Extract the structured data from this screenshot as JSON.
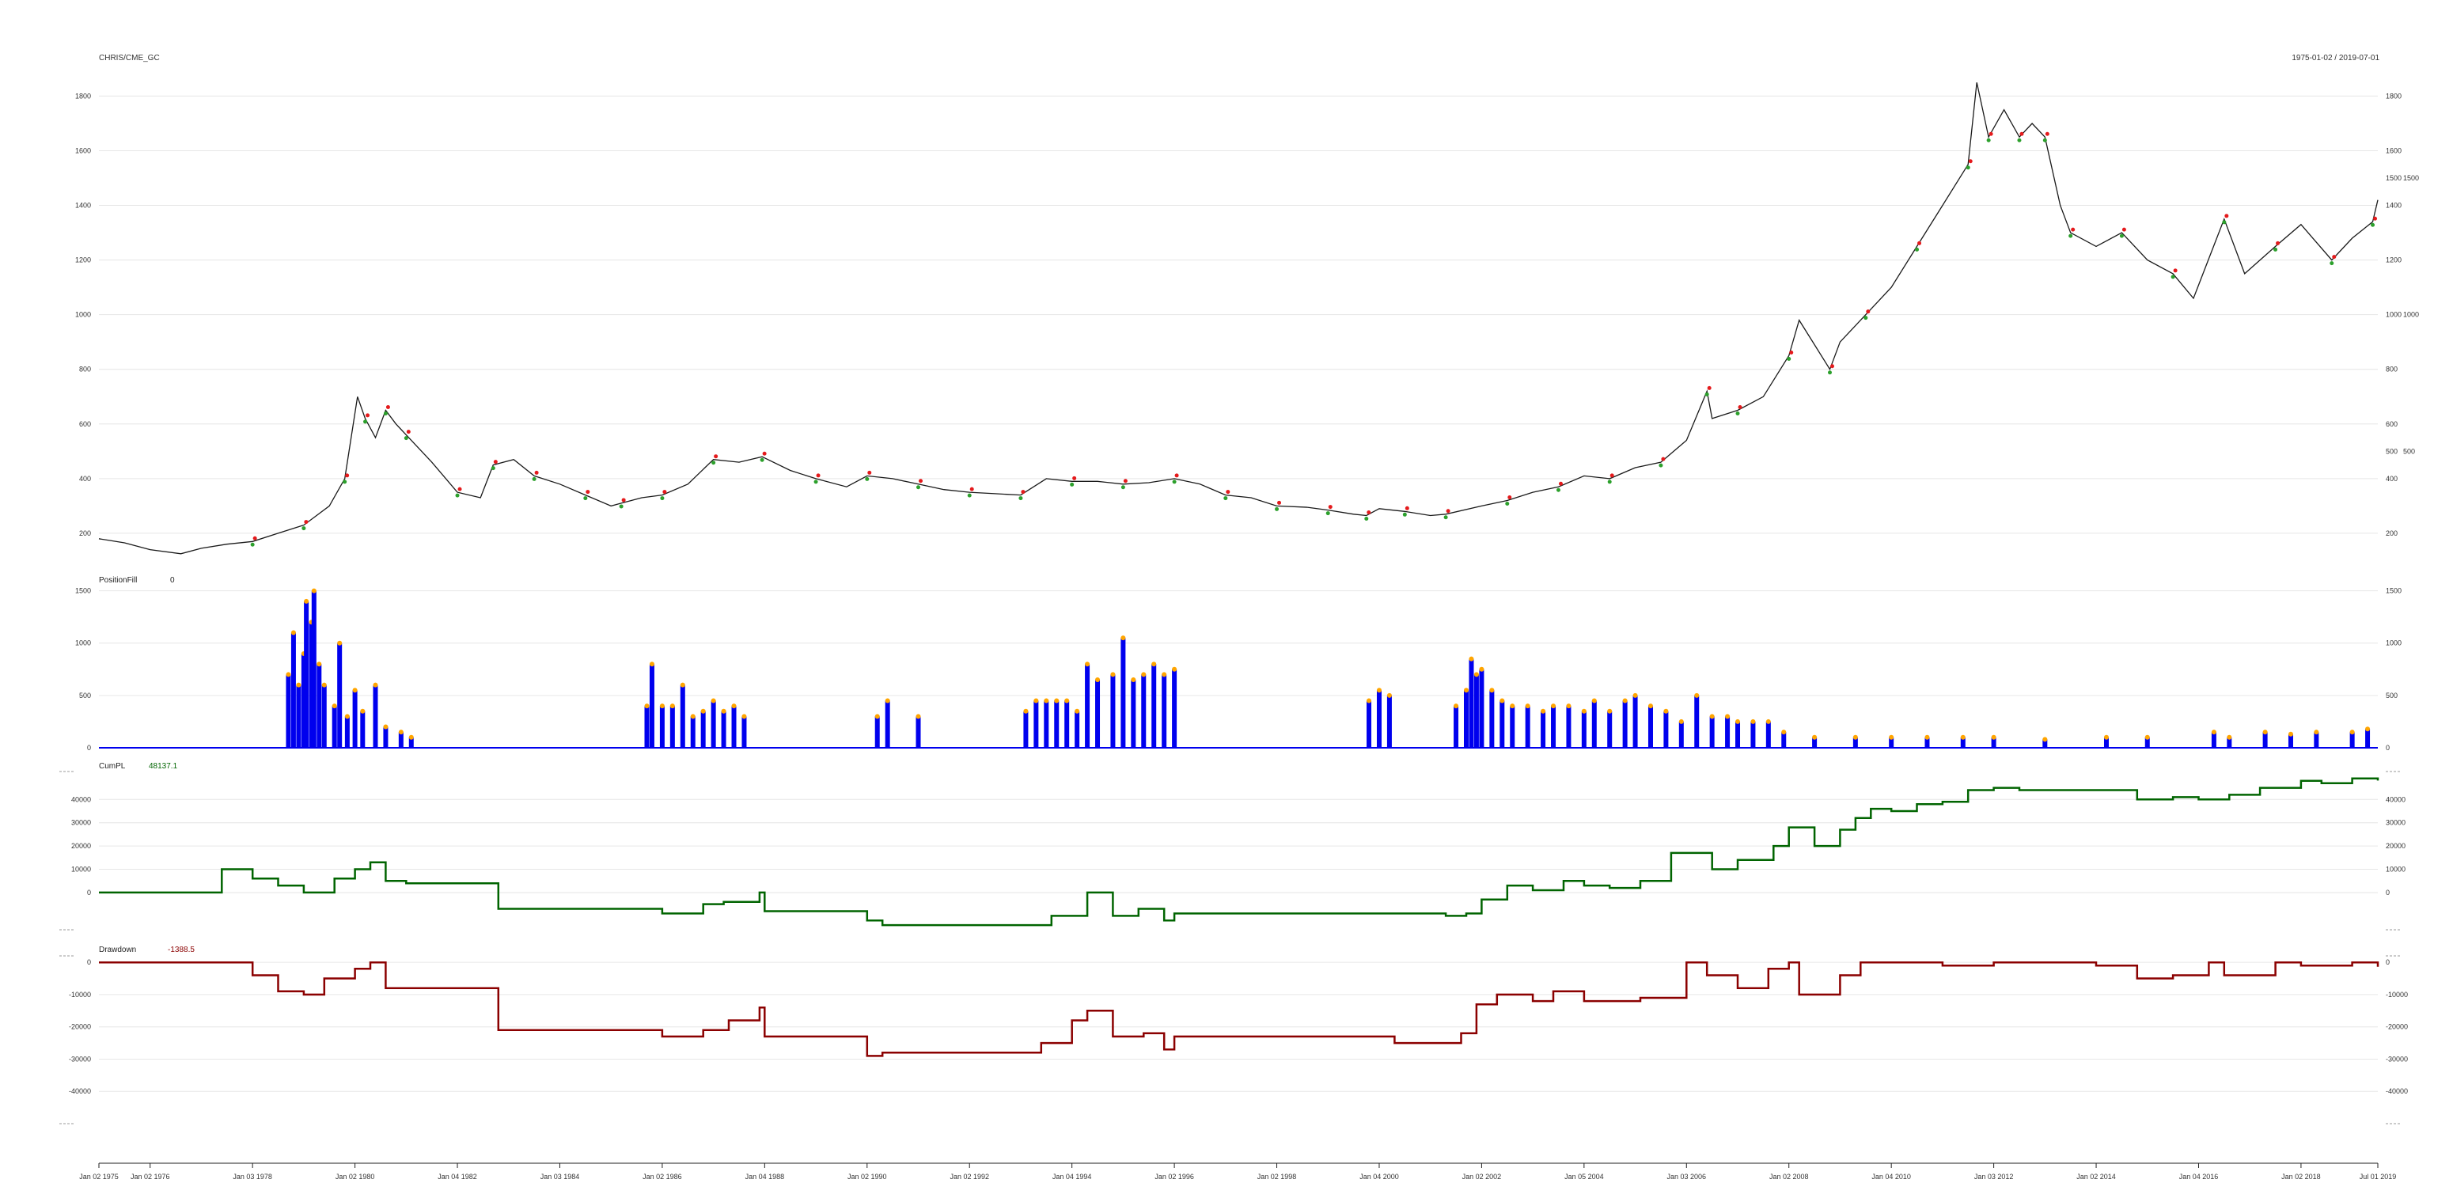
{
  "header": {
    "symbol": "CHRIS/CME_GC",
    "date_range": "1975-01-02 / 2019-07-01"
  },
  "x_axis": {
    "ticks": [
      "Jan 02 1975",
      "Jan 02 1976",
      "Jan 03 1978",
      "Jan 02 1980",
      "Jan 04 1982",
      "Jan 03 1984",
      "Jan 02 1986",
      "Jan 04 1988",
      "Jan 02 1990",
      "Jan 02 1992",
      "Jan 04 1994",
      "Jan 02 1996",
      "Jan 02 1998",
      "Jan 04 2000",
      "Jan 02 2002",
      "Jan 05 2004",
      "Jan 03 2006",
      "Jan 02 2008",
      "Jan 04 2010",
      "Jan 03 2012",
      "Jan 02 2014",
      "Jan 04 2016",
      "Jan 02 2018",
      "Jul 01 2019"
    ],
    "tick_years": [
      1975.0,
      1976.0,
      1978.0,
      1980.0,
      1982.0,
      1984.0,
      1986.0,
      1988.0,
      1990.0,
      1992.0,
      1994.0,
      1996.0,
      1998.0,
      2000.0,
      2002.0,
      2004.0,
      2006.0,
      2008.0,
      2010.0,
      2012.0,
      2014.0,
      2016.0,
      2018.0,
      2019.5
    ]
  },
  "panels": {
    "price": {
      "label": "",
      "left_ticks": [
        "200",
        "400",
        "600",
        "800",
        "1000",
        "1200",
        "1400",
        "1600",
        "1800"
      ],
      "right_ticks": [
        "200",
        "400",
        "500",
        "600",
        "800",
        "1000",
        "1200",
        "1400",
        "1500",
        "1600",
        "1800"
      ],
      "right_markers": [
        "500",
        "1000",
        "1500"
      ]
    },
    "position": {
      "label": "PositionFill",
      "value": "0",
      "left_ticks": [
        "0",
        "500",
        "1000",
        "1500"
      ],
      "right_ticks": [
        "0",
        "500",
        "1000",
        "1500"
      ]
    },
    "cumpl": {
      "label": "CumPL",
      "value": "48137.1",
      "left_ticks": [
        "0",
        "10000",
        "20000",
        "30000",
        "40000"
      ],
      "right_ticks": [
        "0",
        "10000",
        "20000",
        "30000",
        "40000"
      ]
    },
    "drawdown": {
      "label": "Drawdown",
      "value": "-1388.5",
      "left_ticks": [
        "0",
        "-10000",
        "-20000",
        "-30000",
        "-40000"
      ],
      "right_ticks": [
        "0",
        "-10000",
        "-20000",
        "-30000",
        "-40000"
      ]
    }
  },
  "colors": {
    "price_line": "#1a1a1a",
    "buy_marker": "#2ca02c",
    "sell_marker": "#e41a1c",
    "position_bar": "#0000ee",
    "position_dot": "#ffa500",
    "cumpl_line": "#006400",
    "drawdown_line": "#8b0000",
    "grid": "#e6e6e6"
  },
  "chart_data": [
    {
      "type": "line",
      "title": "CHRIS/CME_GC",
      "xlim": [
        1975.0,
        2019.5
      ],
      "ylim": [
        110,
        1920
      ],
      "series": [
        {
          "name": "",
          "x": [
            1975.0,
            1975.5,
            1976.0,
            1976.6,
            1977.0,
            1977.5,
            1978.0,
            1978.5,
            1979.0,
            1979.5,
            1979.8,
            1980.05,
            1980.2,
            1980.4,
            1980.6,
            1980.8,
            1981.0,
            1981.5,
            1982.0,
            1982.45,
            1982.7,
            1983.1,
            1983.5,
            1984.0,
            1984.5,
            1985.0,
            1985.2,
            1985.6,
            1986.0,
            1986.5,
            1987.0,
            1987.5,
            1987.95,
            1988.5,
            1989.0,
            1989.6,
            1990.0,
            1990.5,
            1991.0,
            1991.5,
            1992.0,
            1992.5,
            1993.0,
            1993.5,
            1994.0,
            1994.5,
            1995.0,
            1995.5,
            1996.0,
            1996.5,
            1997.0,
            1997.5,
            1998.0,
            1998.6,
            1999.0,
            1999.5,
            1999.75,
            2000.0,
            2000.5,
            2001.0,
            2001.3,
            2002.0,
            2002.5,
            2003.0,
            2003.5,
            2004.0,
            2004.5,
            2005.0,
            2005.5,
            2006.0,
            2006.4,
            2006.5,
            2007.0,
            2007.5,
            2008.0,
            2008.2,
            2008.8,
            2009.0,
            2009.5,
            2010.0,
            2010.5,
            2011.0,
            2011.5,
            2011.67,
            2011.9,
            2012.2,
            2012.5,
            2012.75,
            2013.0,
            2013.3,
            2013.5,
            2014.0,
            2014.5,
            2015.0,
            2015.5,
            2015.9,
            2016.5,
            2016.9,
            2017.5,
            2018.0,
            2018.6,
            2019.0,
            2019.4,
            2019.5
          ],
          "values": [
            180,
            165,
            140,
            125,
            145,
            160,
            170,
            200,
            230,
            300,
            400,
            700,
            620,
            550,
            650,
            600,
            560,
            460,
            350,
            330,
            450,
            470,
            410,
            380,
            340,
            300,
            310,
            330,
            340,
            380,
            470,
            460,
            480,
            430,
            400,
            370,
            410,
            400,
            380,
            360,
            350,
            345,
            340,
            400,
            390,
            390,
            380,
            385,
            400,
            380,
            340,
            330,
            300,
            295,
            285,
            270,
            265,
            290,
            280,
            265,
            270,
            300,
            320,
            350,
            370,
            410,
            400,
            440,
            460,
            540,
            720,
            620,
            650,
            700,
            850,
            980,
            800,
            900,
            1000,
            1100,
            1250,
            1400,
            1550,
            1850,
            1650,
            1750,
            1650,
            1700,
            1650,
            1400,
            1300,
            1250,
            1300,
            1200,
            1150,
            1060,
            1350,
            1150,
            1250,
            1330,
            1200,
            1280,
            1340,
            1420
          ]
        }
      ]
    },
    {
      "type": "bar",
      "title": "PositionFill",
      "xlim": [
        1975.0,
        2019.5
      ],
      "ylim": [
        0,
        1550
      ],
      "series": [
        {
          "name": "",
          "x": [
            1978.7,
            1978.8,
            1978.9,
            1979.0,
            1979.05,
            1979.15,
            1979.2,
            1979.3,
            1979.4,
            1979.6,
            1979.7,
            1979.85,
            1980.0,
            1980.15,
            1980.4,
            1980.6,
            1980.9,
            1981.1,
            1985.7,
            1985.8,
            1986.0,
            1986.2,
            1986.4,
            1986.6,
            1986.8,
            1987.0,
            1987.2,
            1987.4,
            1987.6,
            1990.2,
            1990.4,
            1991.0,
            1993.1,
            1993.3,
            1993.5,
            1993.7,
            1993.9,
            1994.1,
            1994.3,
            1994.5,
            1994.8,
            1995.0,
            1995.2,
            1995.4,
            1995.6,
            1995.8,
            1996.0,
            1999.8,
            2000.0,
            2000.2,
            2001.5,
            2001.7,
            2001.8,
            2001.9,
            2002.0,
            2002.2,
            2002.4,
            2002.6,
            2002.9,
            2003.2,
            2003.4,
            2003.7,
            2004.0,
            2004.2,
            2004.5,
            2004.8,
            2005.0,
            2005.3,
            2005.6,
            2005.9,
            2006.2,
            2006.5,
            2006.8,
            2007.0,
            2007.3,
            2007.6,
            2007.9,
            2008.5,
            2009.3,
            2010.0,
            2010.7,
            2011.4,
            2012.0,
            2013.0,
            2014.2,
            2015.0,
            2016.3,
            2016.6,
            2017.3,
            2017.8,
            2018.3,
            2019.0,
            2019.3
          ],
          "values": [
            700,
            1100,
            600,
            900,
            1400,
            1200,
            1500,
            800,
            600,
            400,
            1000,
            300,
            550,
            350,
            600,
            200,
            150,
            100,
            400,
            800,
            400,
            400,
            600,
            300,
            350,
            450,
            350,
            400,
            300,
            300,
            450,
            300,
            350,
            450,
            450,
            450,
            450,
            350,
            800,
            650,
            700,
            1050,
            650,
            700,
            800,
            700,
            750,
            450,
            550,
            500,
            400,
            550,
            850,
            700,
            750,
            550,
            450,
            400,
            400,
            350,
            400,
            400,
            350,
            450,
            350,
            450,
            500,
            400,
            350,
            250,
            500,
            300,
            300,
            250,
            250,
            250,
            150,
            100,
            100,
            100,
            100,
            100,
            100,
            80,
            100,
            100,
            150,
            100,
            150,
            130,
            150,
            150,
            180
          ]
        }
      ]
    },
    {
      "type": "line",
      "title": "CumPL",
      "xlim": [
        1975.0,
        2019.5
      ],
      "ylim": [
        -16000,
        52000
      ],
      "series": [
        {
          "name": "",
          "x": [
            1975.0,
            1976.7,
            1977.4,
            1978.0,
            1978.5,
            1979.0,
            1979.6,
            1980.0,
            1980.3,
            1980.6,
            1981.0,
            1982.6,
            1982.8,
            1985.7,
            1986.0,
            1986.8,
            1987.2,
            1987.9,
            1988.0,
            1989.9,
            1990.0,
            1990.3,
            1993.0,
            1993.6,
            1994.3,
            1994.8,
            1995.3,
            1995.8,
            1996.0,
            1999.7,
            2000.5,
            2001.3,
            2001.7,
            2002.0,
            2002.5,
            2003.0,
            2003.6,
            2004.0,
            2004.5,
            2005.1,
            2005.7,
            2006.0,
            2006.5,
            2007.0,
            2007.7,
            2008.0,
            2008.5,
            2009.0,
            2009.3,
            2009.6,
            2010.0,
            2010.5,
            2011.0,
            2011.5,
            2012.0,
            2012.5,
            2013.5,
            2014.0,
            2014.8,
            2015.5,
            2016.0,
            2016.6,
            2017.2,
            2018.0,
            2018.4,
            2019.0,
            2019.5
          ],
          "values": [
            0,
            0,
            10000,
            6000,
            3000,
            0,
            6000,
            10000,
            13000,
            5000,
            4000,
            4000,
            -7000,
            -7000,
            -9000,
            -5000,
            -4000,
            0,
            -8000,
            -8000,
            -12000,
            -14000,
            -14000,
            -10000,
            0,
            -10000,
            -7000,
            -12000,
            -9000,
            -9000,
            -9000,
            -10000,
            -9000,
            -3000,
            3000,
            1000,
            5000,
            3000,
            2000,
            5000,
            17000,
            17000,
            10000,
            14000,
            20000,
            28000,
            20000,
            27000,
            32000,
            36000,
            35000,
            38000,
            39000,
            44000,
            45000,
            44000,
            44000,
            44000,
            40000,
            41000,
            40000,
            42000,
            45000,
            48000,
            47000,
            49000,
            48137.1
          ]
        }
      ]
    },
    {
      "type": "line",
      "title": "Drawdown",
      "xlim": [
        1975.0,
        2019.5
      ],
      "ylim": [
        -50000,
        2000
      ],
      "series": [
        {
          "name": "",
          "x": [
            1975.0,
            1977.5,
            1978.0,
            1978.5,
            1979.0,
            1979.4,
            1980.0,
            1980.3,
            1980.6,
            1982.6,
            1982.8,
            1985.7,
            1986.0,
            1986.8,
            1987.3,
            1987.9,
            1988.0,
            1989.9,
            1990.0,
            1990.3,
            1993.0,
            1993.4,
            1994.0,
            1994.3,
            1994.8,
            1995.4,
            1995.8,
            1996.0,
            1999.7,
            2000.3,
            2001.6,
            2001.9,
            2002.3,
            2003.0,
            2003.4,
            2004.0,
            2005.1,
            2005.6,
            2006.0,
            2006.4,
            2007.0,
            2007.6,
            2008.0,
            2008.2,
            2009.0,
            2009.4,
            2010.0,
            2011.0,
            2012.0,
            2013.0,
            2014.0,
            2014.8,
            2015.5,
            2016.2,
            2016.5,
            2017.5,
            2018.0,
            2019.0,
            2019.5
          ],
          "values": [
            0,
            0,
            -4000,
            -9000,
            -10000,
            -5000,
            -2000,
            0,
            -8000,
            -8000,
            -21000,
            -21000,
            -23000,
            -21000,
            -18000,
            -14000,
            -23000,
            -23000,
            -29000,
            -28000,
            -28000,
            -25000,
            -18000,
            -15000,
            -23000,
            -22000,
            -27000,
            -23000,
            -23000,
            -25000,
            -22000,
            -13000,
            -10000,
            -12000,
            -9000,
            -12000,
            -11000,
            -11000,
            0,
            -4000,
            -8000,
            -2000,
            0,
            -10000,
            -4000,
            0,
            0,
            -1000,
            0,
            0,
            -1000,
            -5000,
            -4000,
            0,
            -4000,
            0,
            -1000,
            0,
            -1388.5
          ]
        }
      ]
    }
  ]
}
